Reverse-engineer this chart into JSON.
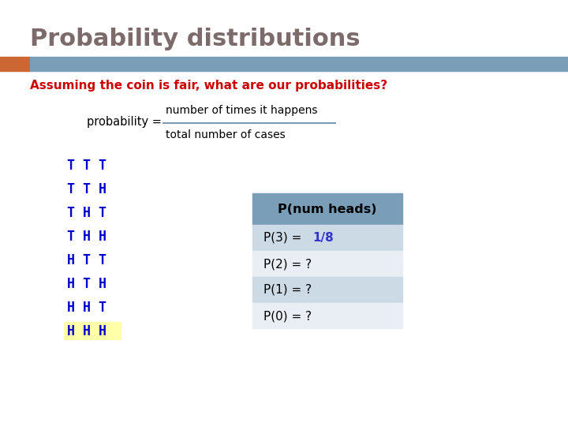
{
  "title": "Probability distributions",
  "title_color": "#7d6b6b",
  "subtitle": "Assuming the coin is fair, what are our probabilities?",
  "subtitle_color": "#cc0000",
  "prob_label": "probability = ",
  "prob_numerator": "number of times it happens",
  "prob_denominator": "total number of cases",
  "coin_sequences": [
    "T T T",
    "T T H",
    "T H T",
    "T H H",
    "H T T",
    "H T H",
    "H H T",
    "H H H"
  ],
  "coin_color": "#0000cc",
  "highlight_last": true,
  "highlight_color": "#ffffaa",
  "header_bg": "#7a9db8",
  "header_text": "P(num heads)",
  "header_text_color": "#000000",
  "row_bg_1": "#ccdae6",
  "row_bg_2": "#e8eef4",
  "table_rows": [
    {
      "label": "P(3) = ",
      "value": "1/8",
      "label_color": "#000000",
      "value_color": "#3333cc"
    },
    {
      "label": "P(2) = ?",
      "value": "",
      "label_color": "#000000",
      "value_color": "#000000"
    },
    {
      "label": "P(1) = ?",
      "value": "",
      "label_color": "#000000",
      "value_color": "#000000"
    },
    {
      "label": "P(0) = ?",
      "value": "",
      "label_color": "#000000",
      "value_color": "#000000"
    }
  ],
  "bar_orange": "#cc6633",
  "bar_blue": "#7a9db8",
  "frac_line_color": "#7a9db8",
  "background_color": "#ffffff"
}
